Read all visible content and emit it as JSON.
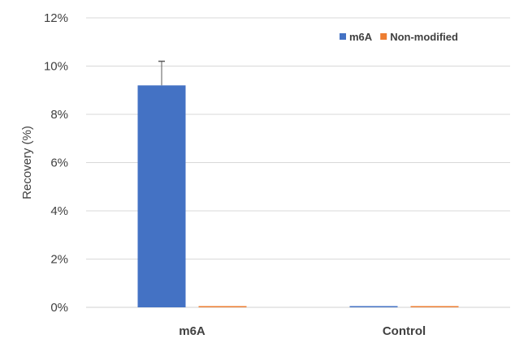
{
  "chart_data": {
    "type": "bar",
    "title": "",
    "xlabel": "",
    "ylabel": "Recovery (%)",
    "ylim": [
      0,
      12
    ],
    "y_ticks": [
      0,
      2,
      4,
      6,
      8,
      10,
      12
    ],
    "y_tick_labels": [
      "0%",
      "2%",
      "4%",
      "6%",
      "8%",
      "10%",
      "12%"
    ],
    "grid": true,
    "legend": "top-right",
    "categories": [
      "m6A",
      "Control"
    ],
    "series": [
      {
        "name": "m6A",
        "color": "#4472C4",
        "values": [
          9.2,
          0.05
        ],
        "error": [
          1.0,
          0.0
        ]
      },
      {
        "name": "Non-modified",
        "color": "#ED7D31",
        "values": [
          0.05,
          0.05
        ],
        "error": [
          0.0,
          0.0
        ]
      }
    ]
  }
}
